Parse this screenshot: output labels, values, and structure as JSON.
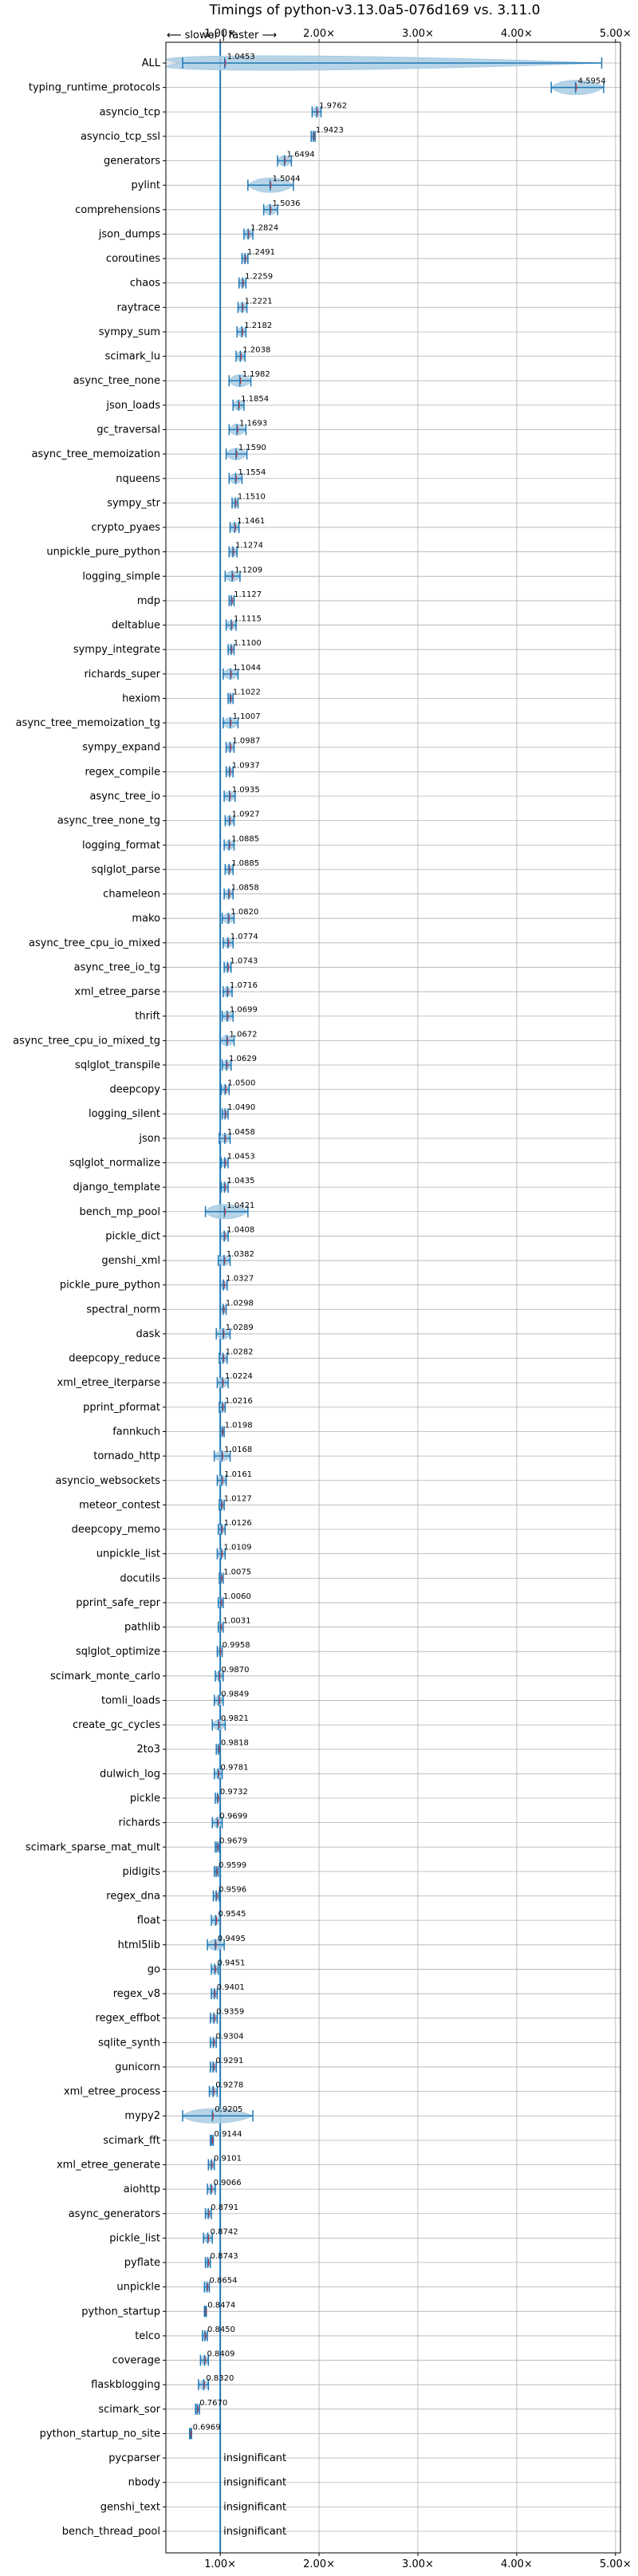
{
  "chart_data": {
    "type": "violin",
    "title": "Timings of python-v3.13.0a5-076d169 vs. 3.11.0",
    "direction_label": "⟵ slower | faster ⟶",
    "x_ticks": [
      "1.00×",
      "2.00×",
      "3.00×",
      "4.00×",
      "5.00×"
    ],
    "x_tick_values": [
      1,
      2,
      3,
      4,
      5
    ],
    "xlim": [
      0.45,
      5.05
    ],
    "reference_line": 1.0,
    "grid": true,
    "colors": {
      "violin": "#a9cce3",
      "median": "#1f77b4",
      "mean": "#d62728",
      "reference": "#1f77b4"
    },
    "insignificant_label": "insignificant",
    "benchmarks": [
      {
        "name": "ALL",
        "value": 1.0453,
        "label": "1.0453",
        "lo": 0.62,
        "hi": 4.86,
        "spread": 0.3
      },
      {
        "name": "typing_runtime_protocols",
        "value": 4.5954,
        "label": "4.5954",
        "lo": 4.35,
        "hi": 4.88,
        "spread": 0.22
      },
      {
        "name": "asyncio_tcp",
        "value": 1.9762,
        "label": "1.9762",
        "lo": 1.93,
        "hi": 2.02,
        "spread": 0.05
      },
      {
        "name": "asyncio_tcp_ssl",
        "value": 1.9423,
        "label": "1.9423",
        "lo": 1.92,
        "hi": 1.96,
        "spread": 0.02
      },
      {
        "name": "generators",
        "value": 1.6494,
        "label": "1.6494",
        "lo": 1.58,
        "hi": 1.72,
        "spread": 0.06
      },
      {
        "name": "pylint",
        "value": 1.5044,
        "label": "1.5044",
        "lo": 1.28,
        "hi": 1.74,
        "spread": 0.2
      },
      {
        "name": "comprehensions",
        "value": 1.5036,
        "label": "1.5036",
        "lo": 1.44,
        "hi": 1.58,
        "spread": 0.06
      },
      {
        "name": "json_dumps",
        "value": 1.2824,
        "label": "1.2824",
        "lo": 1.24,
        "hi": 1.33,
        "spread": 0.04
      },
      {
        "name": "coroutines",
        "value": 1.2491,
        "label": "1.2491",
        "lo": 1.22,
        "hi": 1.28,
        "spread": 0.03
      },
      {
        "name": "chaos",
        "value": 1.2259,
        "label": "1.2259",
        "lo": 1.19,
        "hi": 1.26,
        "spread": 0.03
      },
      {
        "name": "raytrace",
        "value": 1.2221,
        "label": "1.2221",
        "lo": 1.18,
        "hi": 1.27,
        "spread": 0.04
      },
      {
        "name": "sympy_sum",
        "value": 1.2182,
        "label": "1.2182",
        "lo": 1.17,
        "hi": 1.26,
        "spread": 0.04
      },
      {
        "name": "scimark_lu",
        "value": 1.2038,
        "label": "1.2038",
        "lo": 1.16,
        "hi": 1.25,
        "spread": 0.04
      },
      {
        "name": "async_tree_none",
        "value": 1.1982,
        "label": "1.1982",
        "lo": 1.09,
        "hi": 1.31,
        "spread": 0.1
      },
      {
        "name": "json_loads",
        "value": 1.1854,
        "label": "1.1854",
        "lo": 1.13,
        "hi": 1.24,
        "spread": 0.05
      },
      {
        "name": "gc_traversal",
        "value": 1.1693,
        "label": "1.1693",
        "lo": 1.09,
        "hi": 1.26,
        "spread": 0.07
      },
      {
        "name": "async_tree_memoization",
        "value": 1.159,
        "label": "1.1590",
        "lo": 1.06,
        "hi": 1.27,
        "spread": 0.09
      },
      {
        "name": "nqueens",
        "value": 1.1554,
        "label": "1.1554",
        "lo": 1.09,
        "hi": 1.22,
        "spread": 0.06
      },
      {
        "name": "sympy_str",
        "value": 1.151,
        "label": "1.1510",
        "lo": 1.12,
        "hi": 1.18,
        "spread": 0.03
      },
      {
        "name": "crypto_pyaes",
        "value": 1.1461,
        "label": "1.1461",
        "lo": 1.1,
        "hi": 1.19,
        "spread": 0.04
      },
      {
        "name": "unpickle_pure_python",
        "value": 1.1274,
        "label": "1.1274",
        "lo": 1.09,
        "hi": 1.17,
        "spread": 0.04
      },
      {
        "name": "logging_simple",
        "value": 1.1209,
        "label": "1.1209",
        "lo": 1.05,
        "hi": 1.2,
        "spread": 0.06
      },
      {
        "name": "mdp",
        "value": 1.1127,
        "label": "1.1127",
        "lo": 1.09,
        "hi": 1.14,
        "spread": 0.02
      },
      {
        "name": "deltablue",
        "value": 1.1115,
        "label": "1.1115",
        "lo": 1.06,
        "hi": 1.16,
        "spread": 0.04
      },
      {
        "name": "sympy_integrate",
        "value": 1.11,
        "label": "1.1100",
        "lo": 1.08,
        "hi": 1.14,
        "spread": 0.03
      },
      {
        "name": "richards_super",
        "value": 1.1044,
        "label": "1.1044",
        "lo": 1.03,
        "hi": 1.18,
        "spread": 0.06
      },
      {
        "name": "hexiom",
        "value": 1.1022,
        "label": "1.1022",
        "lo": 1.08,
        "hi": 1.13,
        "spread": 0.02
      },
      {
        "name": "async_tree_memoization_tg",
        "value": 1.1007,
        "label": "1.1007",
        "lo": 1.03,
        "hi": 1.18,
        "spread": 0.07
      },
      {
        "name": "sympy_expand",
        "value": 1.0987,
        "label": "1.0987",
        "lo": 1.06,
        "hi": 1.14,
        "spread": 0.04
      },
      {
        "name": "regex_compile",
        "value": 1.0937,
        "label": "1.0937",
        "lo": 1.06,
        "hi": 1.13,
        "spread": 0.03
      },
      {
        "name": "async_tree_io",
        "value": 1.0935,
        "label": "1.0935",
        "lo": 1.04,
        "hi": 1.15,
        "spread": 0.05
      },
      {
        "name": "async_tree_none_tg",
        "value": 1.0927,
        "label": "1.0927",
        "lo": 1.05,
        "hi": 1.14,
        "spread": 0.04
      },
      {
        "name": "logging_format",
        "value": 1.0885,
        "label": "1.0885",
        "lo": 1.04,
        "hi": 1.14,
        "spread": 0.04
      },
      {
        "name": "sqlglot_parse",
        "value": 1.0885,
        "label": "1.0885",
        "lo": 1.05,
        "hi": 1.13,
        "spread": 0.04
      },
      {
        "name": "chameleon",
        "value": 1.0858,
        "label": "1.0858",
        "lo": 1.04,
        "hi": 1.13,
        "spread": 0.04
      },
      {
        "name": "mako",
        "value": 1.082,
        "label": "1.0820",
        "lo": 1.02,
        "hi": 1.14,
        "spread": 0.05
      },
      {
        "name": "async_tree_cpu_io_mixed",
        "value": 1.0774,
        "label": "1.0774",
        "lo": 1.03,
        "hi": 1.13,
        "spread": 0.04
      },
      {
        "name": "async_tree_io_tg",
        "value": 1.0743,
        "label": "1.0743",
        "lo": 1.04,
        "hi": 1.11,
        "spread": 0.03
      },
      {
        "name": "xml_etree_parse",
        "value": 1.0716,
        "label": "1.0716",
        "lo": 1.03,
        "hi": 1.12,
        "spread": 0.04
      },
      {
        "name": "thrift",
        "value": 1.0699,
        "label": "1.0699",
        "lo": 1.02,
        "hi": 1.13,
        "spread": 0.05
      },
      {
        "name": "async_tree_cpu_io_mixed_tg",
        "value": 1.0672,
        "label": "1.0672",
        "lo": 1.0,
        "hi": 1.14,
        "spread": 0.06
      },
      {
        "name": "sqlglot_transpile",
        "value": 1.0629,
        "label": "1.0629",
        "lo": 1.02,
        "hi": 1.11,
        "spread": 0.04
      },
      {
        "name": "deepcopy",
        "value": 1.05,
        "label": "1.0500",
        "lo": 1.01,
        "hi": 1.09,
        "spread": 0.03
      },
      {
        "name": "logging_silent",
        "value": 1.049,
        "label": "1.0490",
        "lo": 1.02,
        "hi": 1.08,
        "spread": 0.03
      },
      {
        "name": "json",
        "value": 1.0458,
        "label": "1.0458",
        "lo": 0.99,
        "hi": 1.1,
        "spread": 0.04
      },
      {
        "name": "sqlglot_normalize",
        "value": 1.0453,
        "label": "1.0453",
        "lo": 1.01,
        "hi": 1.08,
        "spread": 0.03
      },
      {
        "name": "django_template",
        "value": 1.0435,
        "label": "1.0435",
        "lo": 1.01,
        "hi": 1.08,
        "spread": 0.03
      },
      {
        "name": "bench_mp_pool",
        "value": 1.0421,
        "label": "1.0421",
        "lo": 0.85,
        "hi": 1.28,
        "spread": 0.15
      },
      {
        "name": "pickle_dict",
        "value": 1.0408,
        "label": "1.0408",
        "lo": 1.0,
        "hi": 1.08,
        "spread": 0.03
      },
      {
        "name": "genshi_xml",
        "value": 1.0382,
        "label": "1.0382",
        "lo": 0.98,
        "hi": 1.1,
        "spread": 0.05
      },
      {
        "name": "pickle_pure_python",
        "value": 1.0327,
        "label": "1.0327",
        "lo": 1.0,
        "hi": 1.07,
        "spread": 0.03
      },
      {
        "name": "spectral_norm",
        "value": 1.0298,
        "label": "1.0298",
        "lo": 1.0,
        "hi": 1.06,
        "spread": 0.02
      },
      {
        "name": "dask",
        "value": 1.0289,
        "label": "1.0289",
        "lo": 0.96,
        "hi": 1.1,
        "spread": 0.06
      },
      {
        "name": "deepcopy_reduce",
        "value": 1.0282,
        "label": "1.0282",
        "lo": 0.99,
        "hi": 1.07,
        "spread": 0.03
      },
      {
        "name": "xml_etree_iterparse",
        "value": 1.0224,
        "label": "1.0224",
        "lo": 0.97,
        "hi": 1.08,
        "spread": 0.04
      },
      {
        "name": "pprint_pformat",
        "value": 1.0216,
        "label": "1.0216",
        "lo": 0.99,
        "hi": 1.05,
        "spread": 0.02
      },
      {
        "name": "fannkuch",
        "value": 1.0198,
        "label": "1.0198",
        "lo": 1.0,
        "hi": 1.04,
        "spread": 0.02
      },
      {
        "name": "tornado_http",
        "value": 1.0168,
        "label": "1.0168",
        "lo": 0.94,
        "hi": 1.1,
        "spread": 0.06
      },
      {
        "name": "asyncio_websockets",
        "value": 1.0161,
        "label": "1.0161",
        "lo": 0.97,
        "hi": 1.06,
        "spread": 0.04
      },
      {
        "name": "meteor_contest",
        "value": 1.0127,
        "label": "1.0127",
        "lo": 0.99,
        "hi": 1.04,
        "spread": 0.02
      },
      {
        "name": "deepcopy_memo",
        "value": 1.0126,
        "label": "1.0126",
        "lo": 0.98,
        "hi": 1.05,
        "spread": 0.03
      },
      {
        "name": "unpickle_list",
        "value": 1.0109,
        "label": "1.0109",
        "lo": 0.97,
        "hi": 1.05,
        "spread": 0.03
      },
      {
        "name": "docutils",
        "value": 1.0075,
        "label": "1.0075",
        "lo": 0.99,
        "hi": 1.03,
        "spread": 0.02
      },
      {
        "name": "pprint_safe_repr",
        "value": 1.006,
        "label": "1.0060",
        "lo": 0.98,
        "hi": 1.03,
        "spread": 0.02
      },
      {
        "name": "pathlib",
        "value": 1.0031,
        "label": "1.0031",
        "lo": 0.98,
        "hi": 1.03,
        "spread": 0.02
      },
      {
        "name": "sqlglot_optimize",
        "value": 0.9958,
        "label": "0.9958",
        "lo": 0.97,
        "hi": 1.02,
        "spread": 0.02
      },
      {
        "name": "scimark_monte_carlo",
        "value": 0.987,
        "label": "0.9870",
        "lo": 0.95,
        "hi": 1.03,
        "spread": 0.03
      },
      {
        "name": "tomli_loads",
        "value": 0.9849,
        "label": "0.9849",
        "lo": 0.94,
        "hi": 1.03,
        "spread": 0.04
      },
      {
        "name": "create_gc_cycles",
        "value": 0.9821,
        "label": "0.9821",
        "lo": 0.92,
        "hi": 1.05,
        "spread": 0.05
      },
      {
        "name": "2to3",
        "value": 0.9818,
        "label": "0.9818",
        "lo": 0.96,
        "hi": 1.0,
        "spread": 0.02
      },
      {
        "name": "dulwich_log",
        "value": 0.9781,
        "label": "0.9781",
        "lo": 0.94,
        "hi": 1.02,
        "spread": 0.03
      },
      {
        "name": "pickle",
        "value": 0.9732,
        "label": "0.9732",
        "lo": 0.95,
        "hi": 1.0,
        "spread": 0.02
      },
      {
        "name": "richards",
        "value": 0.9699,
        "label": "0.9699",
        "lo": 0.92,
        "hi": 1.02,
        "spread": 0.04
      },
      {
        "name": "scimark_sparse_mat_mult",
        "value": 0.9679,
        "label": "0.9679",
        "lo": 0.95,
        "hi": 0.99,
        "spread": 0.02
      },
      {
        "name": "pidigits",
        "value": 0.9599,
        "label": "0.9599",
        "lo": 0.94,
        "hi": 0.98,
        "spread": 0.02
      },
      {
        "name": "regex_dna",
        "value": 0.9596,
        "label": "0.9596",
        "lo": 0.93,
        "hi": 0.99,
        "spread": 0.02
      },
      {
        "name": "float",
        "value": 0.9545,
        "label": "0.9545",
        "lo": 0.91,
        "hi": 1.0,
        "spread": 0.04
      },
      {
        "name": "html5lib",
        "value": 0.9495,
        "label": "0.9495",
        "lo": 0.87,
        "hi": 1.04,
        "spread": 0.07
      },
      {
        "name": "go",
        "value": 0.9451,
        "label": "0.9451",
        "lo": 0.91,
        "hi": 0.98,
        "spread": 0.03
      },
      {
        "name": "regex_v8",
        "value": 0.9401,
        "label": "0.9401",
        "lo": 0.91,
        "hi": 0.97,
        "spread": 0.03
      },
      {
        "name": "regex_effbot",
        "value": 0.9359,
        "label": "0.9359",
        "lo": 0.9,
        "hi": 0.97,
        "spread": 0.03
      },
      {
        "name": "sqlite_synth",
        "value": 0.9304,
        "label": "0.9304",
        "lo": 0.9,
        "hi": 0.96,
        "spread": 0.02
      },
      {
        "name": "gunicorn",
        "value": 0.9291,
        "label": "0.9291",
        "lo": 0.9,
        "hi": 0.96,
        "spread": 0.03
      },
      {
        "name": "xml_etree_process",
        "value": 0.9278,
        "label": "0.9278",
        "lo": 0.89,
        "hi": 0.97,
        "spread": 0.03
      },
      {
        "name": "mypy2",
        "value": 0.9205,
        "label": "0.9205",
        "lo": 0.62,
        "hi": 1.33,
        "spread": 0.22
      },
      {
        "name": "scimark_fft",
        "value": 0.9144,
        "label": "0.9144",
        "lo": 0.9,
        "hi": 0.93,
        "spread": 0.02
      },
      {
        "name": "xml_etree_generate",
        "value": 0.9101,
        "label": "0.9101",
        "lo": 0.88,
        "hi": 0.94,
        "spread": 0.02
      },
      {
        "name": "aiohttp",
        "value": 0.9066,
        "label": "0.9066",
        "lo": 0.87,
        "hi": 0.95,
        "spread": 0.03
      },
      {
        "name": "async_generators",
        "value": 0.8791,
        "label": "0.8791",
        "lo": 0.85,
        "hi": 0.91,
        "spread": 0.02
      },
      {
        "name": "pickle_list",
        "value": 0.8742,
        "label": "0.8742",
        "lo": 0.83,
        "hi": 0.92,
        "spread": 0.03
      },
      {
        "name": "pyflate",
        "value": 0.8743,
        "label": "0.8743",
        "lo": 0.85,
        "hi": 0.9,
        "spread": 0.02
      },
      {
        "name": "unpickle",
        "value": 0.8654,
        "label": "0.8654",
        "lo": 0.84,
        "hi": 0.89,
        "spread": 0.02
      },
      {
        "name": "python_startup",
        "value": 0.8474,
        "label": "0.8474",
        "lo": 0.84,
        "hi": 0.86,
        "spread": 0.01
      },
      {
        "name": "telco",
        "value": 0.845,
        "label": "0.8450",
        "lo": 0.82,
        "hi": 0.87,
        "spread": 0.02
      },
      {
        "name": "coverage",
        "value": 0.8409,
        "label": "0.8409",
        "lo": 0.8,
        "hi": 0.88,
        "spread": 0.03
      },
      {
        "name": "flaskblogging",
        "value": 0.832,
        "label": "0.8320",
        "lo": 0.78,
        "hi": 0.88,
        "spread": 0.04
      },
      {
        "name": "scimark_sor",
        "value": 0.767,
        "label": "0.7670",
        "lo": 0.75,
        "hi": 0.79,
        "spread": 0.02
      },
      {
        "name": "python_startup_no_site",
        "value": 0.6969,
        "label": "0.6969",
        "lo": 0.69,
        "hi": 0.71,
        "spread": 0.01
      },
      {
        "name": "pycparser",
        "value": null,
        "label": "insignificant"
      },
      {
        "name": "nbody",
        "value": null,
        "label": "insignificant"
      },
      {
        "name": "genshi_text",
        "value": null,
        "label": "insignificant"
      },
      {
        "name": "bench_thread_pool",
        "value": null,
        "label": "insignificant"
      }
    ]
  }
}
